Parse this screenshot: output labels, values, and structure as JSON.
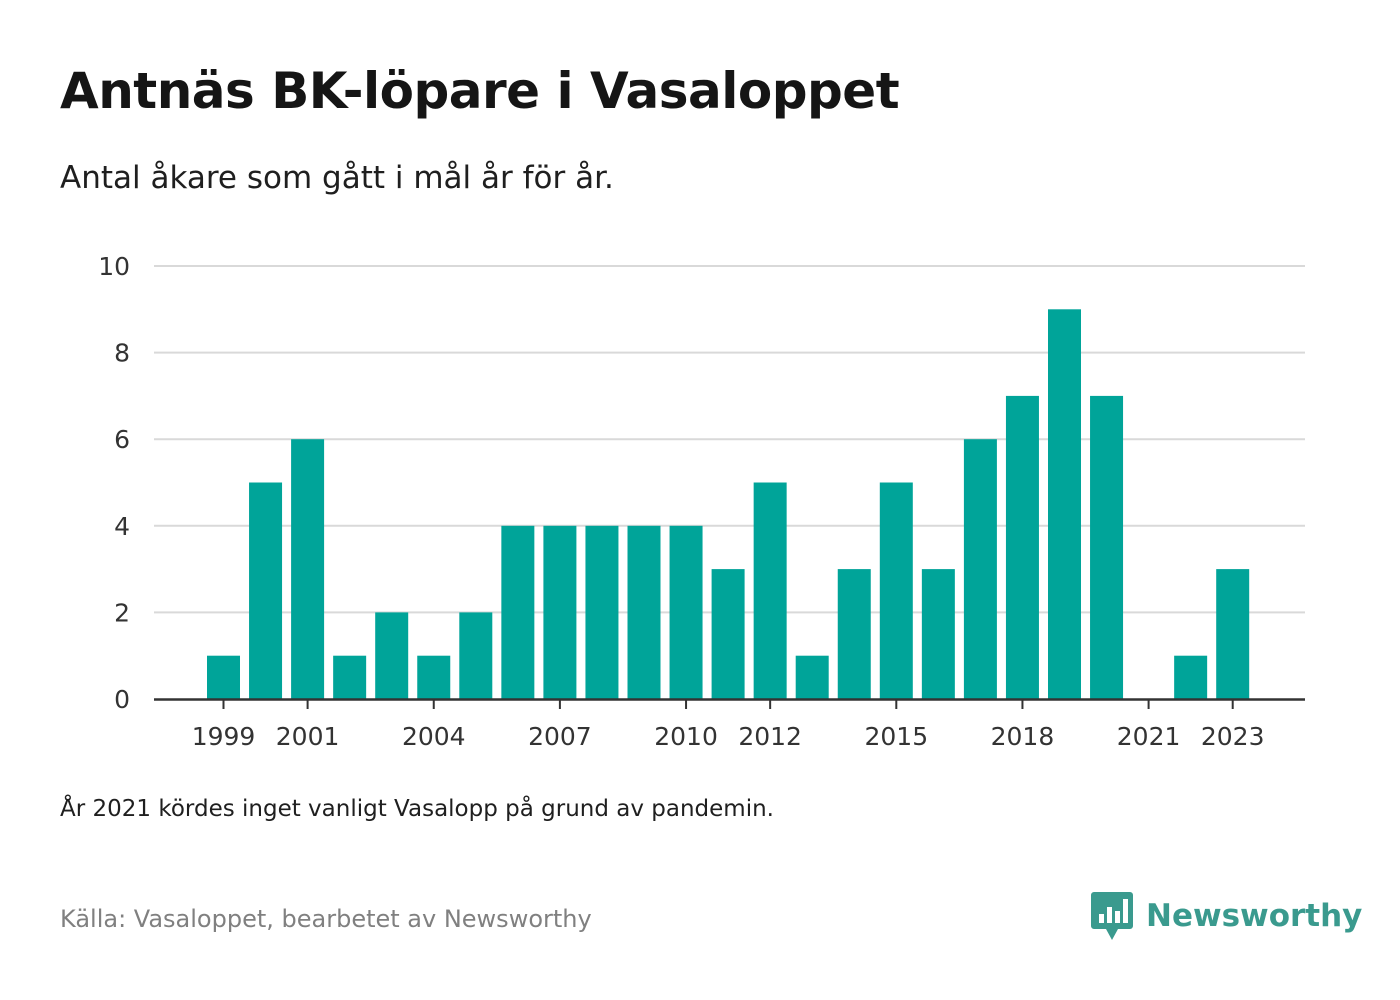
{
  "header": {
    "title": "Antnäs BK-löpare i Vasaloppet",
    "subtitle": "Antal åkare som gått i mål år för år."
  },
  "footer": {
    "note": "År 2021 kördes inget vanligt Vasalopp på grund av pandemin.",
    "source": "Källa: Vasaloppet, bearbetet av Newsworthy",
    "brand": "Newsworthy",
    "brand_icon": "newsworthy-logo-icon"
  },
  "colors": {
    "bar": "#00a499",
    "grid": "#d9d9d9",
    "axis": "#333333",
    "brand": "#3a9a8e"
  },
  "chart_data": {
    "type": "bar",
    "categories": [
      "1999",
      "2000",
      "2001",
      "2002",
      "2003",
      "2004",
      "2005",
      "2006",
      "2007",
      "2008",
      "2009",
      "2010",
      "2011",
      "2012",
      "2013",
      "2014",
      "2015",
      "2016",
      "2017",
      "2018",
      "2019",
      "2020",
      "2021",
      "2022",
      "2023"
    ],
    "values": [
      1,
      5,
      6,
      1,
      2,
      1,
      2,
      4,
      4,
      4,
      4,
      4,
      3,
      5,
      1,
      3,
      5,
      3,
      6,
      7,
      9,
      7,
      0,
      1,
      3
    ],
    "x_tick_labels": [
      "1999",
      "2001",
      "2004",
      "2007",
      "2010",
      "2012",
      "2015",
      "2018",
      "2021",
      "2023"
    ],
    "y_ticks": [
      0,
      2,
      4,
      6,
      8,
      10
    ],
    "ylim": [
      0,
      10
    ],
    "grid": true,
    "legend": "none"
  }
}
